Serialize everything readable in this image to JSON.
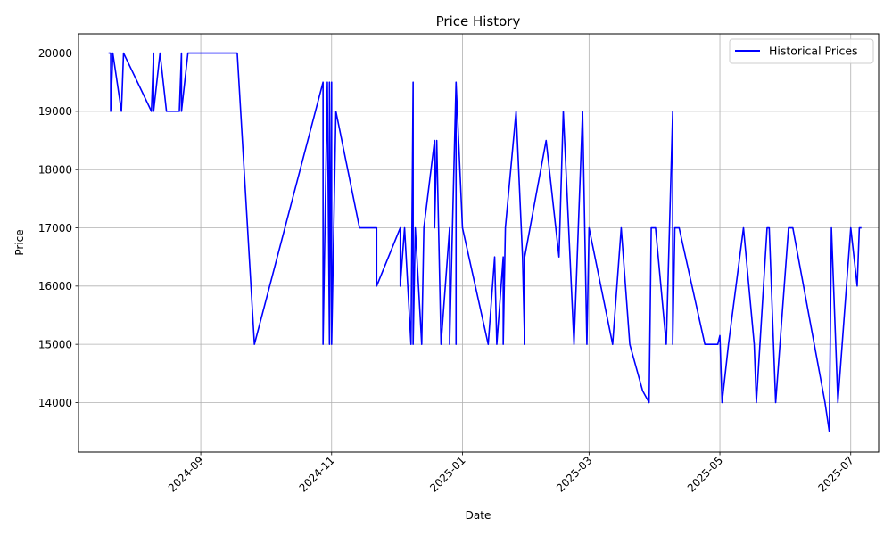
{
  "chart_data": {
    "type": "line",
    "title": "Price History",
    "xlabel": "Date",
    "ylabel": "Price",
    "grid": true,
    "legend_placement": "top-right",
    "x_ticks": [
      "2024-09",
      "2024-11",
      "2025-01",
      "2025-03",
      "2025-05",
      "2025-07"
    ],
    "y_ticks": [
      14000,
      15000,
      16000,
      17000,
      18000,
      19000,
      20000
    ],
    "xlim": [
      "2024-07-06",
      "2025-07-14"
    ],
    "ylim": [
      13150,
      20330
    ],
    "series": [
      {
        "name": "Historical Prices",
        "color": "#0000ff",
        "points": [
          [
            "2024-07-20",
            20000
          ],
          [
            "2024-07-21",
            20000
          ],
          [
            "2024-07-21",
            19000
          ],
          [
            "2024-07-22",
            20000
          ],
          [
            "2024-07-26",
            19000
          ],
          [
            "2024-07-27",
            20000
          ],
          [
            "2024-08-09",
            19000
          ],
          [
            "2024-08-10",
            20000
          ],
          [
            "2024-08-10",
            19000
          ],
          [
            "2024-08-13",
            20000
          ],
          [
            "2024-08-16",
            19000
          ],
          [
            "2024-08-22",
            19000
          ],
          [
            "2024-08-23",
            20000
          ],
          [
            "2024-08-23",
            19000
          ],
          [
            "2024-08-26",
            20000
          ],
          [
            "2024-09-17",
            20000
          ],
          [
            "2024-09-18",
            20000
          ],
          [
            "2024-09-26",
            15000
          ],
          [
            "2024-10-28",
            19500
          ],
          [
            "2024-10-28",
            15000
          ],
          [
            "2024-10-30",
            19500
          ],
          [
            "2024-10-31",
            15000
          ],
          [
            "2024-10-31",
            19500
          ],
          [
            "2024-11-01",
            15000
          ],
          [
            "2024-11-01",
            19500
          ],
          [
            "2024-11-01",
            15000
          ],
          [
            "2024-11-03",
            19000
          ],
          [
            "2024-11-14",
            17000
          ],
          [
            "2024-11-22",
            17000
          ],
          [
            "2024-11-22",
            16000
          ],
          [
            "2024-12-03",
            17000
          ],
          [
            "2024-12-03",
            16000
          ],
          [
            "2024-12-05",
            17000
          ],
          [
            "2024-12-08",
            15000
          ],
          [
            "2024-12-09",
            19500
          ],
          [
            "2024-12-09",
            15000
          ],
          [
            "2024-12-10",
            17000
          ],
          [
            "2024-12-13",
            15000
          ],
          [
            "2024-12-14",
            17000
          ],
          [
            "2024-12-19",
            18500
          ],
          [
            "2024-12-19",
            17000
          ],
          [
            "2024-12-20",
            18500
          ],
          [
            "2024-12-22",
            15000
          ],
          [
            "2024-12-26",
            17000
          ],
          [
            "2024-12-26",
            15000
          ],
          [
            "2024-12-29",
            19500
          ],
          [
            "2024-12-29",
            15000
          ],
          [
            "2024-12-29",
            19500
          ],
          [
            "2025-01-01",
            17000
          ],
          [
            "2025-01-13",
            15000
          ],
          [
            "2025-01-16",
            16500
          ],
          [
            "2025-01-17",
            15000
          ],
          [
            "2025-01-20",
            16500
          ],
          [
            "2025-01-20",
            15000
          ],
          [
            "2025-01-21",
            17000
          ],
          [
            "2025-01-26",
            19000
          ],
          [
            "2025-01-29",
            16500
          ],
          [
            "2025-01-30",
            15000
          ],
          [
            "2025-01-30",
            16500
          ],
          [
            "2025-02-09",
            18500
          ],
          [
            "2025-02-15",
            16500
          ],
          [
            "2025-02-17",
            19000
          ],
          [
            "2025-02-22",
            15000
          ],
          [
            "2025-02-26",
            19000
          ],
          [
            "2025-02-28",
            15000
          ],
          [
            "2025-03-01",
            17000
          ],
          [
            "2025-03-12",
            15000
          ],
          [
            "2025-03-16",
            17000
          ],
          [
            "2025-03-20",
            15000
          ],
          [
            "2025-03-26",
            14200
          ],
          [
            "2025-03-29",
            14000
          ],
          [
            "2025-03-30",
            17000
          ],
          [
            "2025-04-01",
            17000
          ],
          [
            "2025-04-06",
            15000
          ],
          [
            "2025-04-09",
            19000
          ],
          [
            "2025-04-09",
            15000
          ],
          [
            "2025-04-10",
            17000
          ],
          [
            "2025-04-12",
            17000
          ],
          [
            "2025-04-24",
            15000
          ],
          [
            "2025-04-30",
            15000
          ],
          [
            "2025-05-01",
            15150
          ],
          [
            "2025-05-02",
            14000
          ],
          [
            "2025-05-05",
            15000
          ],
          [
            "2025-05-12",
            17000
          ],
          [
            "2025-05-17",
            15000
          ],
          [
            "2025-05-18",
            14000
          ],
          [
            "2025-05-20",
            15200
          ],
          [
            "2025-05-23",
            17000
          ],
          [
            "2025-05-24",
            17000
          ],
          [
            "2025-05-27",
            14000
          ],
          [
            "2025-05-31",
            16000
          ],
          [
            "2025-06-02",
            17000
          ],
          [
            "2025-06-04",
            17000
          ],
          [
            "2025-06-19",
            14000
          ],
          [
            "2025-06-21",
            13500
          ],
          [
            "2025-06-22",
            17000
          ],
          [
            "2025-06-25",
            14000
          ],
          [
            "2025-06-28",
            15500
          ],
          [
            "2025-07-01",
            17000
          ],
          [
            "2025-07-04",
            16000
          ],
          [
            "2025-07-05",
            17000
          ],
          [
            "2025-07-06",
            17000
          ]
        ]
      }
    ]
  }
}
